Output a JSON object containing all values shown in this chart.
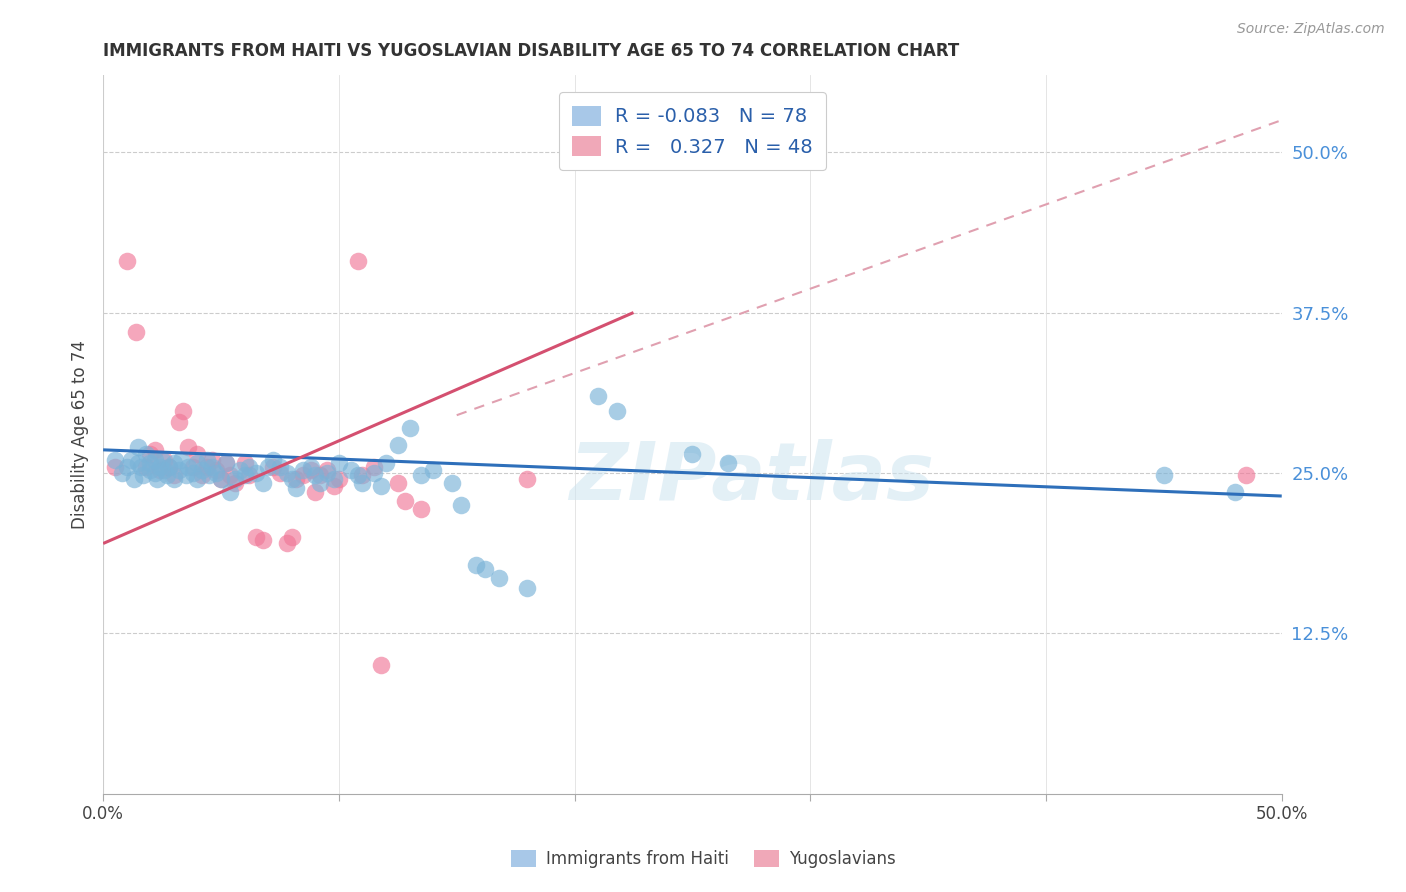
{
  "title": "IMMIGRANTS FROM HAITI VS YUGOSLAVIAN DISABILITY AGE 65 TO 74 CORRELATION CHART",
  "source": "Source: ZipAtlas.com",
  "ylabel": "Disability Age 65 to 74",
  "ytick_values": [
    0.125,
    0.25,
    0.375,
    0.5
  ],
  "ytick_labels": [
    "12.5%",
    "25.0%",
    "37.5%",
    "50.0%"
  ],
  "xlim": [
    0.0,
    0.5
  ],
  "ylim": [
    0.0,
    0.56
  ],
  "haiti_color": "#7ab3d8",
  "yugoslav_color": "#f07898",
  "haiti_line_color": "#2e6fba",
  "yugoslav_line_color": "#d45070",
  "yugoslav_dash_color": "#e0a0b0",
  "watermark": "ZIPatlas",
  "haiti_line": [
    0.0,
    0.268,
    0.5,
    0.232
  ],
  "yugoslav_line": [
    0.0,
    0.195,
    0.225,
    0.375
  ],
  "yugoslav_dash": [
    0.15,
    0.295,
    0.5,
    0.525
  ],
  "haiti_points": [
    [
      0.005,
      0.26
    ],
    [
      0.008,
      0.25
    ],
    [
      0.01,
      0.255
    ],
    [
      0.012,
      0.26
    ],
    [
      0.013,
      0.245
    ],
    [
      0.015,
      0.258
    ],
    [
      0.015,
      0.27
    ],
    [
      0.016,
      0.255
    ],
    [
      0.017,
      0.248
    ],
    [
      0.018,
      0.265
    ],
    [
      0.02,
      0.252
    ],
    [
      0.02,
      0.258
    ],
    [
      0.022,
      0.25
    ],
    [
      0.022,
      0.26
    ],
    [
      0.023,
      0.245
    ],
    [
      0.024,
      0.255
    ],
    [
      0.025,
      0.26
    ],
    [
      0.026,
      0.252
    ],
    [
      0.027,
      0.248
    ],
    [
      0.028,
      0.255
    ],
    [
      0.03,
      0.245
    ],
    [
      0.03,
      0.258
    ],
    [
      0.032,
      0.252
    ],
    [
      0.033,
      0.26
    ],
    [
      0.035,
      0.248
    ],
    [
      0.036,
      0.255
    ],
    [
      0.038,
      0.25
    ],
    [
      0.04,
      0.245
    ],
    [
      0.04,
      0.258
    ],
    [
      0.042,
      0.252
    ],
    [
      0.044,
      0.26
    ],
    [
      0.045,
      0.248
    ],
    [
      0.046,
      0.255
    ],
    [
      0.048,
      0.25
    ],
    [
      0.05,
      0.245
    ],
    [
      0.052,
      0.258
    ],
    [
      0.054,
      0.235
    ],
    [
      0.056,
      0.245
    ],
    [
      0.058,
      0.252
    ],
    [
      0.06,
      0.248
    ],
    [
      0.062,
      0.255
    ],
    [
      0.065,
      0.25
    ],
    [
      0.068,
      0.242
    ],
    [
      0.07,
      0.255
    ],
    [
      0.072,
      0.26
    ],
    [
      0.075,
      0.255
    ],
    [
      0.078,
      0.25
    ],
    [
      0.08,
      0.245
    ],
    [
      0.082,
      0.238
    ],
    [
      0.085,
      0.252
    ],
    [
      0.088,
      0.255
    ],
    [
      0.09,
      0.248
    ],
    [
      0.092,
      0.242
    ],
    [
      0.095,
      0.25
    ],
    [
      0.098,
      0.245
    ],
    [
      0.1,
      0.258
    ],
    [
      0.105,
      0.252
    ],
    [
      0.108,
      0.248
    ],
    [
      0.11,
      0.242
    ],
    [
      0.115,
      0.25
    ],
    [
      0.118,
      0.24
    ],
    [
      0.12,
      0.258
    ],
    [
      0.125,
      0.272
    ],
    [
      0.13,
      0.285
    ],
    [
      0.135,
      0.248
    ],
    [
      0.14,
      0.252
    ],
    [
      0.148,
      0.242
    ],
    [
      0.152,
      0.225
    ],
    [
      0.158,
      0.178
    ],
    [
      0.162,
      0.175
    ],
    [
      0.168,
      0.168
    ],
    [
      0.18,
      0.16
    ],
    [
      0.21,
      0.31
    ],
    [
      0.218,
      0.298
    ],
    [
      0.25,
      0.265
    ],
    [
      0.265,
      0.258
    ],
    [
      0.45,
      0.248
    ],
    [
      0.48,
      0.235
    ]
  ],
  "yugoslav_points": [
    [
      0.005,
      0.255
    ],
    [
      0.01,
      0.415
    ],
    [
      0.014,
      0.36
    ],
    [
      0.018,
      0.255
    ],
    [
      0.02,
      0.265
    ],
    [
      0.022,
      0.268
    ],
    [
      0.024,
      0.252
    ],
    [
      0.026,
      0.26
    ],
    [
      0.028,
      0.255
    ],
    [
      0.03,
      0.248
    ],
    [
      0.032,
      0.29
    ],
    [
      0.034,
      0.298
    ],
    [
      0.036,
      0.27
    ],
    [
      0.038,
      0.255
    ],
    [
      0.04,
      0.265
    ],
    [
      0.042,
      0.248
    ],
    [
      0.044,
      0.255
    ],
    [
      0.046,
      0.26
    ],
    [
      0.048,
      0.252
    ],
    [
      0.05,
      0.245
    ],
    [
      0.052,
      0.258
    ],
    [
      0.054,
      0.248
    ],
    [
      0.056,
      0.242
    ],
    [
      0.06,
      0.258
    ],
    [
      0.062,
      0.248
    ],
    [
      0.065,
      0.2
    ],
    [
      0.068,
      0.198
    ],
    [
      0.072,
      0.255
    ],
    [
      0.075,
      0.25
    ],
    [
      0.078,
      0.195
    ],
    [
      0.08,
      0.2
    ],
    [
      0.082,
      0.245
    ],
    [
      0.085,
      0.248
    ],
    [
      0.088,
      0.252
    ],
    [
      0.09,
      0.235
    ],
    [
      0.092,
      0.248
    ],
    [
      0.095,
      0.252
    ],
    [
      0.098,
      0.24
    ],
    [
      0.1,
      0.245
    ],
    [
      0.108,
      0.415
    ],
    [
      0.11,
      0.248
    ],
    [
      0.115,
      0.255
    ],
    [
      0.118,
      0.1
    ],
    [
      0.125,
      0.242
    ],
    [
      0.128,
      0.228
    ],
    [
      0.135,
      0.222
    ],
    [
      0.18,
      0.245
    ],
    [
      0.485,
      0.248
    ]
  ]
}
